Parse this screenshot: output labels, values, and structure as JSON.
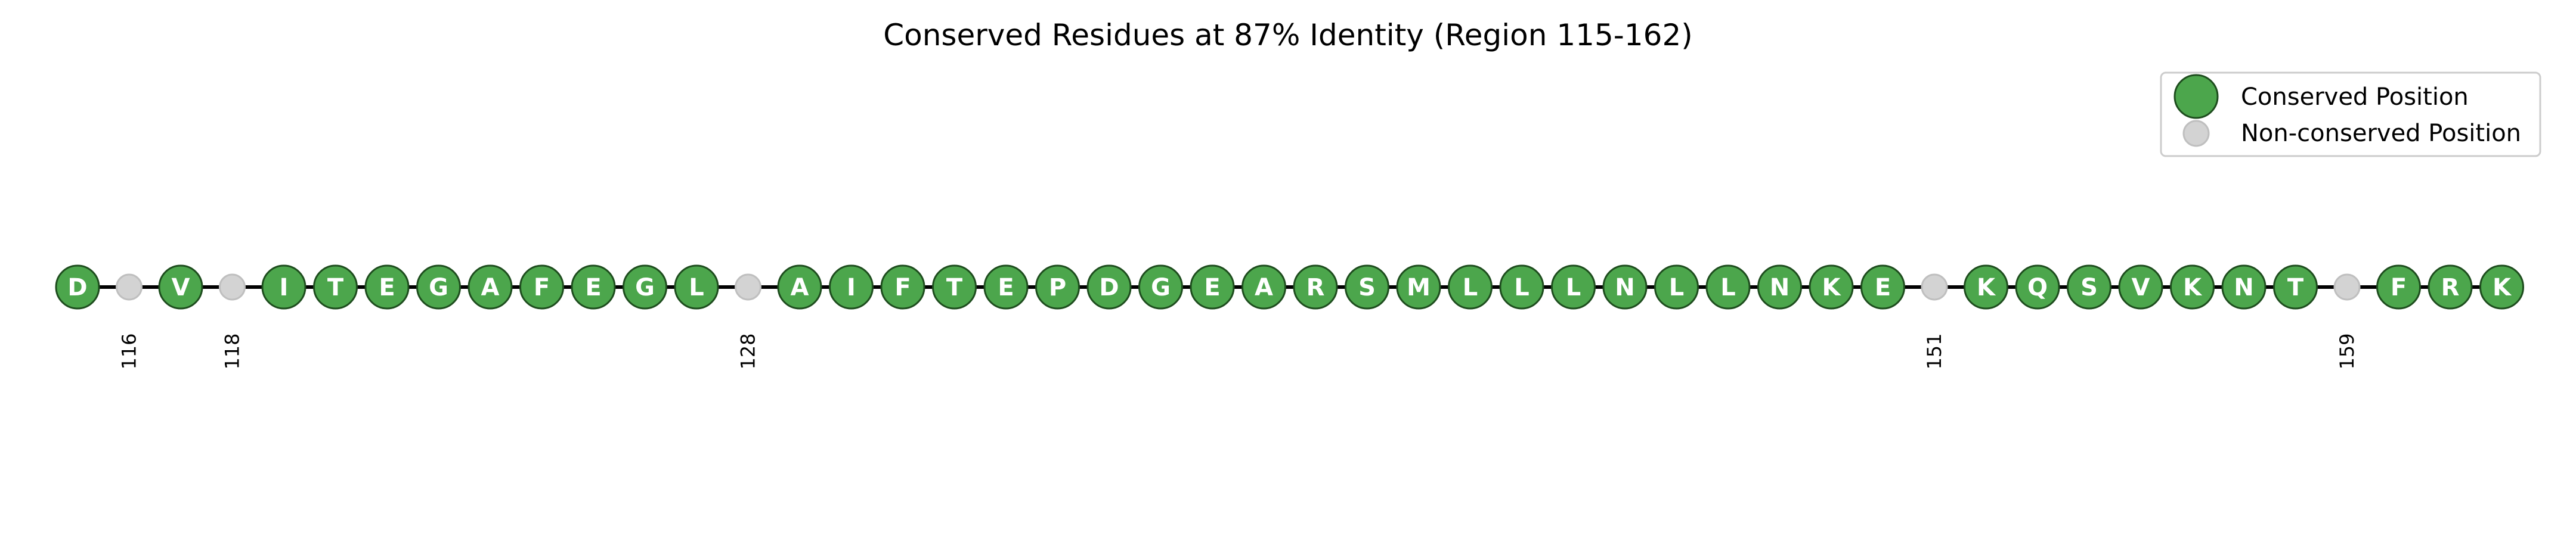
{
  "chart_data": {
    "type": "scatter",
    "title": "Conserved Residues at 87% Identity (Region 115-162)",
    "legend": {
      "placement": "top-right",
      "entries": [
        {
          "label": "Conserved Position",
          "color": "#4ca64c",
          "edge": "#1e4d1e"
        },
        {
          "label": "Non-conserved Position",
          "color": "#d3d3d3",
          "edge": "#bfbfbf"
        }
      ]
    },
    "xlim": [
      114.5,
      162.5
    ],
    "positions": [
      {
        "pos": 115,
        "conserved": true,
        "residue": "D"
      },
      {
        "pos": 116,
        "conserved": false,
        "residue": ""
      },
      {
        "pos": 117,
        "conserved": true,
        "residue": "V"
      },
      {
        "pos": 118,
        "conserved": false,
        "residue": ""
      },
      {
        "pos": 119,
        "conserved": true,
        "residue": "I"
      },
      {
        "pos": 120,
        "conserved": true,
        "residue": "T"
      },
      {
        "pos": 121,
        "conserved": true,
        "residue": "E"
      },
      {
        "pos": 122,
        "conserved": true,
        "residue": "G"
      },
      {
        "pos": 123,
        "conserved": true,
        "residue": "A"
      },
      {
        "pos": 124,
        "conserved": true,
        "residue": "F"
      },
      {
        "pos": 125,
        "conserved": true,
        "residue": "E"
      },
      {
        "pos": 126,
        "conserved": true,
        "residue": "G"
      },
      {
        "pos": 127,
        "conserved": true,
        "residue": "L"
      },
      {
        "pos": 128,
        "conserved": false,
        "residue": ""
      },
      {
        "pos": 129,
        "conserved": true,
        "residue": "A"
      },
      {
        "pos": 130,
        "conserved": true,
        "residue": "I"
      },
      {
        "pos": 131,
        "conserved": true,
        "residue": "F"
      },
      {
        "pos": 132,
        "conserved": true,
        "residue": "T"
      },
      {
        "pos": 133,
        "conserved": true,
        "residue": "E"
      },
      {
        "pos": 134,
        "conserved": true,
        "residue": "P"
      },
      {
        "pos": 135,
        "conserved": true,
        "residue": "D"
      },
      {
        "pos": 136,
        "conserved": true,
        "residue": "G"
      },
      {
        "pos": 137,
        "conserved": true,
        "residue": "E"
      },
      {
        "pos": 138,
        "conserved": true,
        "residue": "A"
      },
      {
        "pos": 139,
        "conserved": true,
        "residue": "R"
      },
      {
        "pos": 140,
        "conserved": true,
        "residue": "S"
      },
      {
        "pos": 141,
        "conserved": true,
        "residue": "M"
      },
      {
        "pos": 142,
        "conserved": true,
        "residue": "L"
      },
      {
        "pos": 143,
        "conserved": true,
        "residue": "L"
      },
      {
        "pos": 144,
        "conserved": true,
        "residue": "L"
      },
      {
        "pos": 145,
        "conserved": true,
        "residue": "N"
      },
      {
        "pos": 146,
        "conserved": true,
        "residue": "L"
      },
      {
        "pos": 147,
        "conserved": true,
        "residue": "L"
      },
      {
        "pos": 148,
        "conserved": true,
        "residue": "N"
      },
      {
        "pos": 149,
        "conserved": true,
        "residue": "K"
      },
      {
        "pos": 150,
        "conserved": true,
        "residue": "E"
      },
      {
        "pos": 151,
        "conserved": false,
        "residue": ""
      },
      {
        "pos": 152,
        "conserved": true,
        "residue": "K"
      },
      {
        "pos": 153,
        "conserved": true,
        "residue": "Q"
      },
      {
        "pos": 154,
        "conserved": true,
        "residue": "S"
      },
      {
        "pos": 155,
        "conserved": true,
        "residue": "V"
      },
      {
        "pos": 156,
        "conserved": true,
        "residue": "K"
      },
      {
        "pos": 157,
        "conserved": true,
        "residue": "N"
      },
      {
        "pos": 158,
        "conserved": true,
        "residue": "T"
      },
      {
        "pos": 159,
        "conserved": false,
        "residue": ""
      },
      {
        "pos": 160,
        "conserved": true,
        "residue": "F"
      },
      {
        "pos": 161,
        "conserved": true,
        "residue": "R"
      },
      {
        "pos": 162,
        "conserved": true,
        "residue": "K"
      }
    ],
    "grid": false,
    "axes_visible": false
  }
}
